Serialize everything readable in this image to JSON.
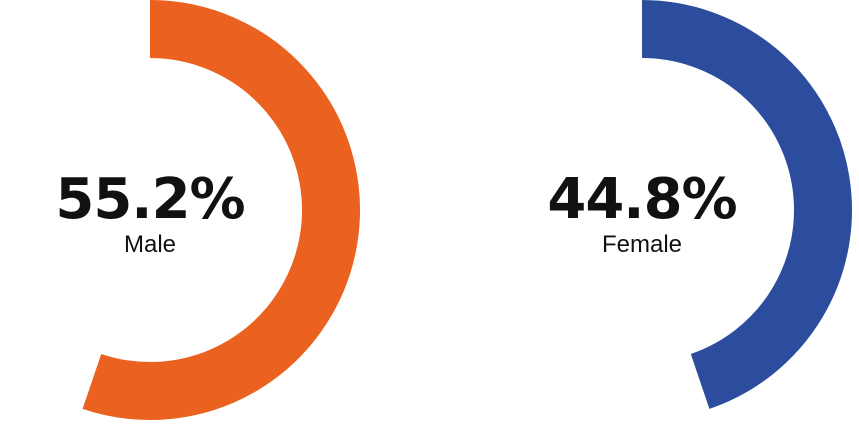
{
  "chart_data": [
    {
      "type": "pie",
      "categories": [
        "Male"
      ],
      "values": [
        55.2
      ],
      "unit": "%",
      "value_label": "55.2%",
      "color": "#EB611F"
    },
    {
      "type": "pie",
      "categories": [
        "Female"
      ],
      "values": [
        44.8
      ],
      "unit": "%",
      "value_label": "44.8%",
      "color": "#2C4D9E"
    }
  ]
}
